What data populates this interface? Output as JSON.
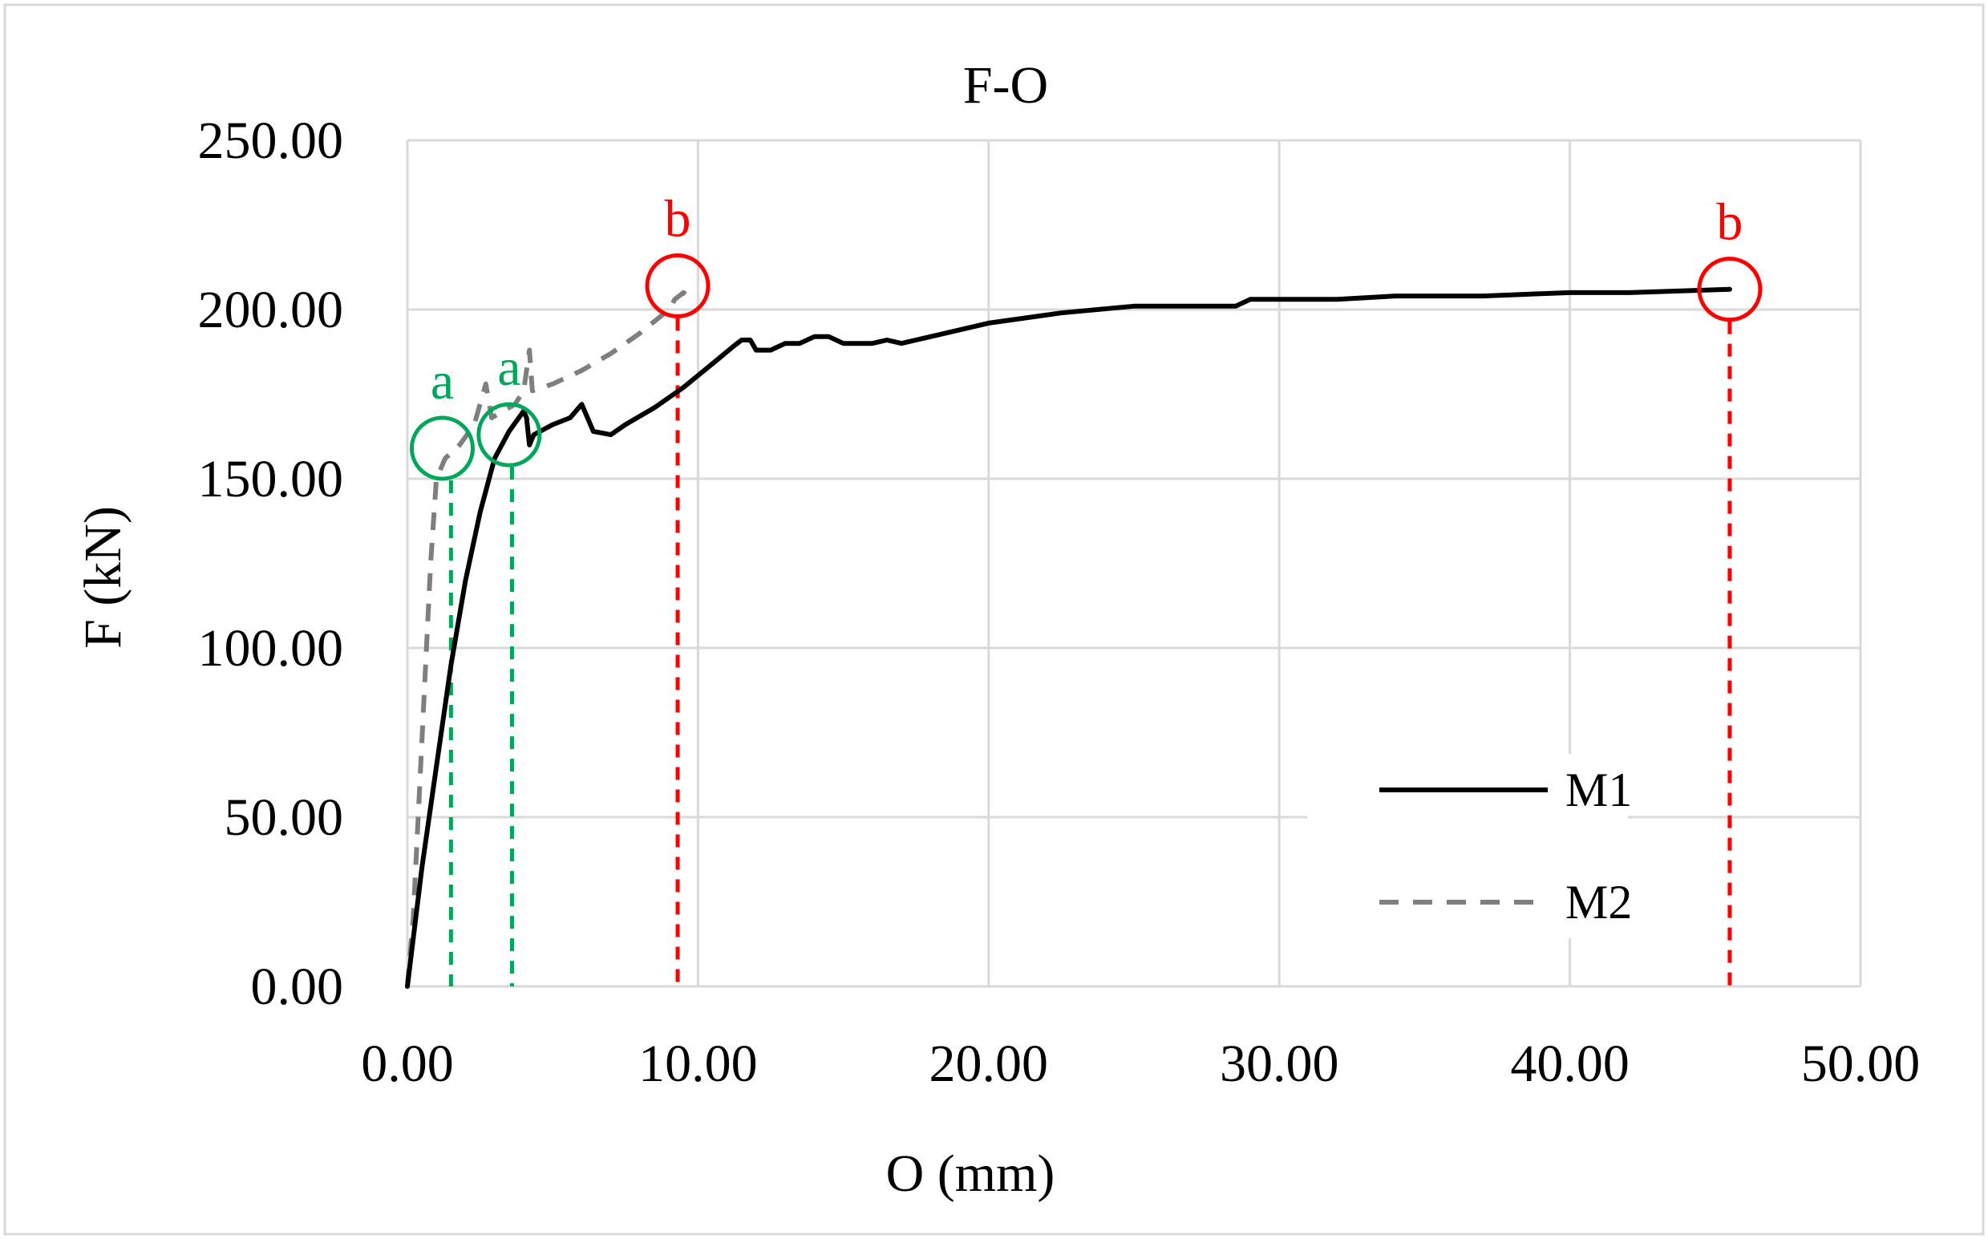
{
  "chart_data": {
    "type": "line",
    "title": "F-O",
    "xlabel": "O (mm)",
    "ylabel": "F (kN)",
    "xlim": [
      0,
      50
    ],
    "ylim": [
      0,
      250
    ],
    "x_ticks": [
      0,
      10,
      20,
      30,
      40,
      50
    ],
    "y_ticks": [
      0,
      50,
      100,
      150,
      200,
      250
    ],
    "x_tick_labels": [
      "0.00",
      "10.00",
      "20.00",
      "30.00",
      "40.00",
      "50.00"
    ],
    "y_tick_labels": [
      "0.00",
      "50.00",
      "100.00",
      "150.00",
      "200.00",
      "250.00"
    ],
    "grid": true,
    "legend_position": "bottom-right",
    "series": [
      {
        "name": "M1",
        "style": "solid",
        "color": "#000000",
        "points": [
          [
            0,
            0
          ],
          [
            0.5,
            35
          ],
          [
            1.0,
            65
          ],
          [
            1.5,
            95
          ],
          [
            2.0,
            120
          ],
          [
            2.5,
            140
          ],
          [
            3.0,
            156
          ],
          [
            3.5,
            164
          ],
          [
            4.0,
            170
          ],
          [
            4.1,
            168
          ],
          [
            4.2,
            160
          ],
          [
            4.35,
            163
          ],
          [
            5.0,
            166
          ],
          [
            5.6,
            168
          ],
          [
            6.0,
            172
          ],
          [
            6.4,
            164
          ],
          [
            7.0,
            163
          ],
          [
            7.5,
            166
          ],
          [
            8.5,
            171
          ],
          [
            9.5,
            177
          ],
          [
            10.5,
            184
          ],
          [
            11.2,
            189
          ],
          [
            11.5,
            191
          ],
          [
            11.8,
            191
          ],
          [
            12.0,
            188
          ],
          [
            12.5,
            188
          ],
          [
            13.0,
            190
          ],
          [
            13.5,
            190
          ],
          [
            14.0,
            192
          ],
          [
            14.5,
            192
          ],
          [
            15.0,
            190
          ],
          [
            16.0,
            190
          ],
          [
            16.5,
            191
          ],
          [
            17.0,
            190
          ],
          [
            18.0,
            192
          ],
          [
            20.0,
            196
          ],
          [
            22.5,
            199
          ],
          [
            25.0,
            201
          ],
          [
            28.5,
            201
          ],
          [
            29.0,
            203
          ],
          [
            32.0,
            203
          ],
          [
            34.0,
            204
          ],
          [
            37.0,
            204
          ],
          [
            40.0,
            205
          ],
          [
            42.0,
            205
          ],
          [
            45.5,
            206
          ]
        ]
      },
      {
        "name": "M2",
        "style": "dashed",
        "color": "#7f7f7f",
        "points": [
          [
            0,
            0
          ],
          [
            0.2,
            20
          ],
          [
            0.4,
            55
          ],
          [
            0.6,
            90
          ],
          [
            0.8,
            125
          ],
          [
            1.0,
            150
          ],
          [
            1.3,
            156
          ],
          [
            1.8,
            160
          ],
          [
            2.3,
            166
          ],
          [
            2.5,
            172
          ],
          [
            2.7,
            178
          ],
          [
            2.9,
            168
          ],
          [
            3.3,
            170
          ],
          [
            3.7,
            172
          ],
          [
            4.0,
            176
          ],
          [
            4.2,
            188
          ],
          [
            4.3,
            176
          ],
          [
            5.0,
            178
          ],
          [
            6.0,
            182
          ],
          [
            7.0,
            187
          ],
          [
            8.0,
            193
          ],
          [
            9.0,
            200
          ],
          [
            9.2,
            203
          ],
          [
            9.5,
            205
          ],
          [
            9.8,
            203
          ]
        ]
      }
    ],
    "annotations": [
      {
        "label": "a",
        "color": "#00a65a",
        "x": 1.2,
        "y": 159,
        "drop_line_x": 1.5
      },
      {
        "label": "a",
        "color": "#00a65a",
        "x": 3.5,
        "y": 163,
        "drop_line_x": 3.6
      },
      {
        "label": "b",
        "color": "#ff0000",
        "x": 9.3,
        "y": 207,
        "drop_line_x": 9.3
      },
      {
        "label": "b",
        "color": "#ff0000",
        "x": 45.5,
        "y": 206,
        "drop_line_x": 45.5
      }
    ],
    "colors": {
      "grid": "#d9d9d9",
      "axis_text": "#000000",
      "frame": "#d9d9d9"
    }
  }
}
